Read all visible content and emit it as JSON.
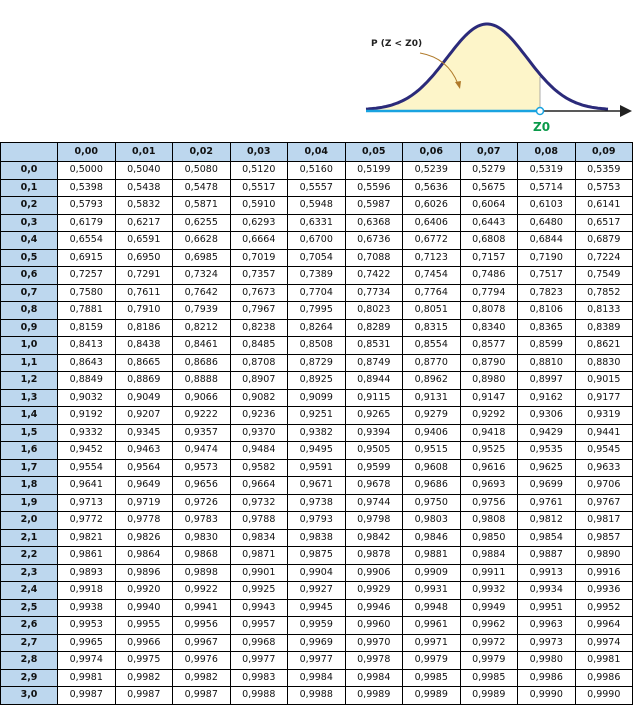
{
  "figure": {
    "label": "P (Z < Z0)",
    "z_label": "Z0",
    "colors": {
      "curve": "#2b2a7a",
      "fill": "#fdf5c9",
      "baseline": "#1aa3e0",
      "z_label": "#0a9a4a",
      "arrow": "#b07a2a"
    }
  },
  "table": {
    "columns": [
      "0,00",
      "0,01",
      "0,02",
      "0,03",
      "0,04",
      "0,05",
      "0,06",
      "0,07",
      "0,08",
      "0,09"
    ],
    "header_color": "#bdd7ee",
    "rows": [
      {
        "z": "0,0",
        "values": [
          "0,5000",
          "0,5040",
          "0,5080",
          "0,5120",
          "0,5160",
          "0,5199",
          "0,5239",
          "0,5279",
          "0,5319",
          "0,5359"
        ]
      },
      {
        "z": "0,1",
        "values": [
          "0,5398",
          "0,5438",
          "0,5478",
          "0,5517",
          "0,5557",
          "0,5596",
          "0,5636",
          "0,5675",
          "0,5714",
          "0,5753"
        ]
      },
      {
        "z": "0,2",
        "values": [
          "0,5793",
          "0,5832",
          "0,5871",
          "0,5910",
          "0,5948",
          "0,5987",
          "0,6026",
          "0,6064",
          "0,6103",
          "0,6141"
        ]
      },
      {
        "z": "0,3",
        "values": [
          "0,6179",
          "0,6217",
          "0,6255",
          "0,6293",
          "0,6331",
          "0,6368",
          "0,6406",
          "0,6443",
          "0,6480",
          "0,6517"
        ]
      },
      {
        "z": "0,4",
        "values": [
          "0,6554",
          "0,6591",
          "0,6628",
          "0,6664",
          "0,6700",
          "0,6736",
          "0,6772",
          "0,6808",
          "0,6844",
          "0,6879"
        ]
      },
      {
        "z": "0,5",
        "values": [
          "0,6915",
          "0,6950",
          "0,6985",
          "0,7019",
          "0,7054",
          "0,7088",
          "0,7123",
          "0,7157",
          "0,7190",
          "0,7224"
        ]
      },
      {
        "z": "0,6",
        "values": [
          "0,7257",
          "0,7291",
          "0,7324",
          "0,7357",
          "0,7389",
          "0,7422",
          "0,7454",
          "0,7486",
          "0,7517",
          "0,7549"
        ]
      },
      {
        "z": "0,7",
        "values": [
          "0,7580",
          "0,7611",
          "0,7642",
          "0,7673",
          "0,7704",
          "0,7734",
          "0,7764",
          "0,7794",
          "0,7823",
          "0,7852"
        ]
      },
      {
        "z": "0,8",
        "values": [
          "0,7881",
          "0,7910",
          "0,7939",
          "0,7967",
          "0,7995",
          "0,8023",
          "0,8051",
          "0,8078",
          "0,8106",
          "0,8133"
        ]
      },
      {
        "z": "0,9",
        "values": [
          "0,8159",
          "0,8186",
          "0,8212",
          "0,8238",
          "0,8264",
          "0,8289",
          "0,8315",
          "0,8340",
          "0,8365",
          "0,8389"
        ]
      },
      {
        "z": "1,0",
        "values": [
          "0,8413",
          "0,8438",
          "0,8461",
          "0,8485",
          "0,8508",
          "0,8531",
          "0,8554",
          "0,8577",
          "0,8599",
          "0,8621"
        ]
      },
      {
        "z": "1,1",
        "values": [
          "0,8643",
          "0,8665",
          "0,8686",
          "0,8708",
          "0,8729",
          "0,8749",
          "0,8770",
          "0,8790",
          "0,8810",
          "0,8830"
        ]
      },
      {
        "z": "1,2",
        "values": [
          "0,8849",
          "0,8869",
          "0,8888",
          "0,8907",
          "0,8925",
          "0,8944",
          "0,8962",
          "0,8980",
          "0,8997",
          "0,9015"
        ]
      },
      {
        "z": "1,3",
        "values": [
          "0,9032",
          "0,9049",
          "0,9066",
          "0,9082",
          "0,9099",
          "0,9115",
          "0,9131",
          "0,9147",
          "0,9162",
          "0,9177"
        ]
      },
      {
        "z": "1,4",
        "values": [
          "0,9192",
          "0,9207",
          "0,9222",
          "0,9236",
          "0,9251",
          "0,9265",
          "0,9279",
          "0,9292",
          "0,9306",
          "0,9319"
        ]
      },
      {
        "z": "1,5",
        "values": [
          "0,9332",
          "0,9345",
          "0,9357",
          "0,9370",
          "0,9382",
          "0,9394",
          "0,9406",
          "0,9418",
          "0,9429",
          "0,9441"
        ]
      },
      {
        "z": "1,6",
        "values": [
          "0,9452",
          "0,9463",
          "0,9474",
          "0,9484",
          "0,9495",
          "0,9505",
          "0,9515",
          "0,9525",
          "0,9535",
          "0,9545"
        ]
      },
      {
        "z": "1,7",
        "values": [
          "0,9554",
          "0,9564",
          "0,9573",
          "0,9582",
          "0,9591",
          "0,9599",
          "0,9608",
          "0,9616",
          "0,9625",
          "0,9633"
        ]
      },
      {
        "z": "1,8",
        "values": [
          "0,9641",
          "0,9649",
          "0,9656",
          "0,9664",
          "0,9671",
          "0,9678",
          "0,9686",
          "0,9693",
          "0,9699",
          "0,9706"
        ]
      },
      {
        "z": "1,9",
        "values": [
          "0,9713",
          "0,9719",
          "0,9726",
          "0,9732",
          "0,9738",
          "0,9744",
          "0,9750",
          "0,9756",
          "0,9761",
          "0,9767"
        ]
      },
      {
        "z": "2,0",
        "values": [
          "0,9772",
          "0,9778",
          "0,9783",
          "0,9788",
          "0,9793",
          "0,9798",
          "0,9803",
          "0,9808",
          "0,9812",
          "0,9817"
        ]
      },
      {
        "z": "2,1",
        "values": [
          "0,9821",
          "0,9826",
          "0,9830",
          "0,9834",
          "0,9838",
          "0,9842",
          "0,9846",
          "0,9850",
          "0,9854",
          "0,9857"
        ]
      },
      {
        "z": "2,2",
        "values": [
          "0,9861",
          "0,9864",
          "0,9868",
          "0,9871",
          "0,9875",
          "0,9878",
          "0,9881",
          "0,9884",
          "0,9887",
          "0,9890"
        ]
      },
      {
        "z": "2,3",
        "values": [
          "0,9893",
          "0,9896",
          "0,9898",
          "0,9901",
          "0,9904",
          "0,9906",
          "0,9909",
          "0,9911",
          "0,9913",
          "0,9916"
        ]
      },
      {
        "z": "2,4",
        "values": [
          "0,9918",
          "0,9920",
          "0,9922",
          "0,9925",
          "0,9927",
          "0,9929",
          "0,9931",
          "0,9932",
          "0,9934",
          "0,9936"
        ]
      },
      {
        "z": "2,5",
        "values": [
          "0,9938",
          "0,9940",
          "0,9941",
          "0,9943",
          "0,9945",
          "0,9946",
          "0,9948",
          "0,9949",
          "0,9951",
          "0,9952"
        ]
      },
      {
        "z": "2,6",
        "values": [
          "0,9953",
          "0,9955",
          "0,9956",
          "0,9957",
          "0,9959",
          "0,9960",
          "0,9961",
          "0,9962",
          "0,9963",
          "0,9964"
        ]
      },
      {
        "z": "2,7",
        "values": [
          "0,9965",
          "0,9966",
          "0,9967",
          "0,9968",
          "0,9969",
          "0,9970",
          "0,9971",
          "0,9972",
          "0,9973",
          "0,9974"
        ]
      },
      {
        "z": "2,8",
        "values": [
          "0,9974",
          "0,9975",
          "0,9976",
          "0,9977",
          "0,9977",
          "0,9978",
          "0,9979",
          "0,9979",
          "0,9980",
          "0,9981"
        ]
      },
      {
        "z": "2,9",
        "values": [
          "0,9981",
          "0,9982",
          "0,9982",
          "0,9983",
          "0,9984",
          "0,9984",
          "0,9985",
          "0,9985",
          "0,9986",
          "0,9986"
        ]
      },
      {
        "z": "3,0",
        "values": [
          "0,9987",
          "0,9987",
          "0,9987",
          "0,9988",
          "0,9988",
          "0,9989",
          "0,9989",
          "0,9989",
          "0,9990",
          "0,9990"
        ]
      }
    ]
  }
}
